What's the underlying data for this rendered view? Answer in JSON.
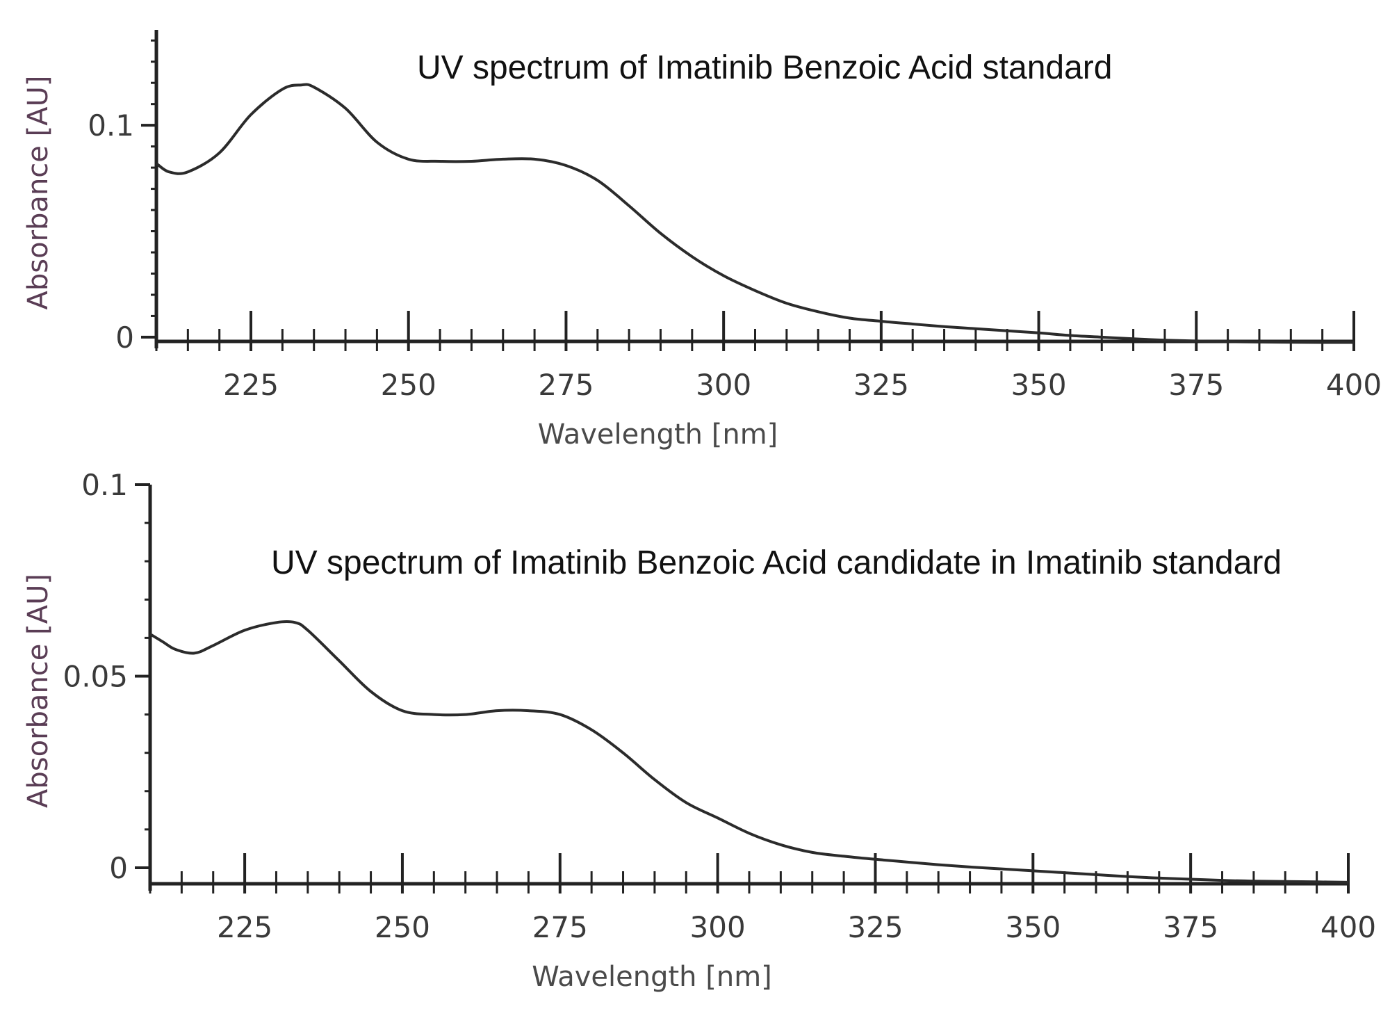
{
  "chart_data": [
    {
      "type": "line",
      "title": "UV spectrum of Imatinib Benzoic Acid standard",
      "xlabel": "Wavelength [nm]",
      "ylabel": "Absorbance [AU]",
      "xlim": [
        210,
        400
      ],
      "ylim": [
        -0.002,
        0.145
      ],
      "x_ticks": [
        "225",
        "250",
        "275",
        "300",
        "325",
        "350",
        "375",
        "400"
      ],
      "y_ticks": [
        "0",
        "0.1"
      ],
      "grid": false,
      "series": [
        {
          "x": [
            210,
            212,
            215,
            220,
            225,
            230,
            233,
            235,
            240,
            245,
            250,
            255,
            260,
            265,
            270,
            275,
            280,
            285,
            290,
            295,
            300,
            305,
            310,
            315,
            320,
            325,
            330,
            335,
            340,
            345,
            350,
            355,
            360,
            365,
            370,
            375,
            380,
            385,
            390,
            395,
            400
          ],
          "y": [
            0.082,
            0.078,
            0.078,
            0.087,
            0.105,
            0.117,
            0.119,
            0.118,
            0.108,
            0.092,
            0.084,
            0.083,
            0.083,
            0.084,
            0.084,
            0.081,
            0.074,
            0.062,
            0.049,
            0.038,
            0.029,
            0.022,
            0.016,
            0.012,
            0.009,
            0.0075,
            0.0062,
            0.005,
            0.004,
            0.003,
            0.002,
            0.0008,
            0.0,
            -0.0008,
            -0.0014,
            -0.0018,
            -0.0021,
            -0.0023,
            -0.0024,
            -0.0025,
            -0.0025
          ]
        }
      ]
    },
    {
      "type": "line",
      "title": "UV spectrum of Imatinib Benzoic Acid candidate in Imatinib standard",
      "xlabel": "Wavelength [nm]",
      "ylabel": "Absorbance [AU]",
      "xlim": [
        210,
        400
      ],
      "ylim": [
        -0.004,
        0.1
      ],
      "x_ticks": [
        "225",
        "250",
        "275",
        "300",
        "325",
        "350",
        "375",
        "400"
      ],
      "y_ticks": [
        "0",
        "0.05",
        "0.1"
      ],
      "grid": false,
      "series": [
        {
          "x": [
            210,
            212,
            214,
            217,
            220,
            225,
            230,
            233,
            235,
            240,
            245,
            250,
            255,
            260,
            265,
            270,
            275,
            280,
            285,
            290,
            295,
            300,
            305,
            310,
            315,
            320,
            325,
            330,
            335,
            340,
            345,
            350,
            355,
            360,
            365,
            370,
            375,
            380,
            385,
            390,
            395,
            400
          ],
          "y": [
            0.061,
            0.059,
            0.057,
            0.056,
            0.058,
            0.062,
            0.064,
            0.064,
            0.062,
            0.054,
            0.046,
            0.041,
            0.04,
            0.04,
            0.041,
            0.041,
            0.04,
            0.036,
            0.03,
            0.023,
            0.017,
            0.013,
            0.009,
            0.006,
            0.004,
            0.003,
            0.0022,
            0.0015,
            0.0008,
            0.0002,
            -0.0003,
            -0.0008,
            -0.0013,
            -0.0018,
            -0.0023,
            -0.0027,
            -0.003,
            -0.0033,
            -0.0035,
            -0.0036,
            -0.0037,
            -0.0038
          ]
        }
      ]
    }
  ]
}
